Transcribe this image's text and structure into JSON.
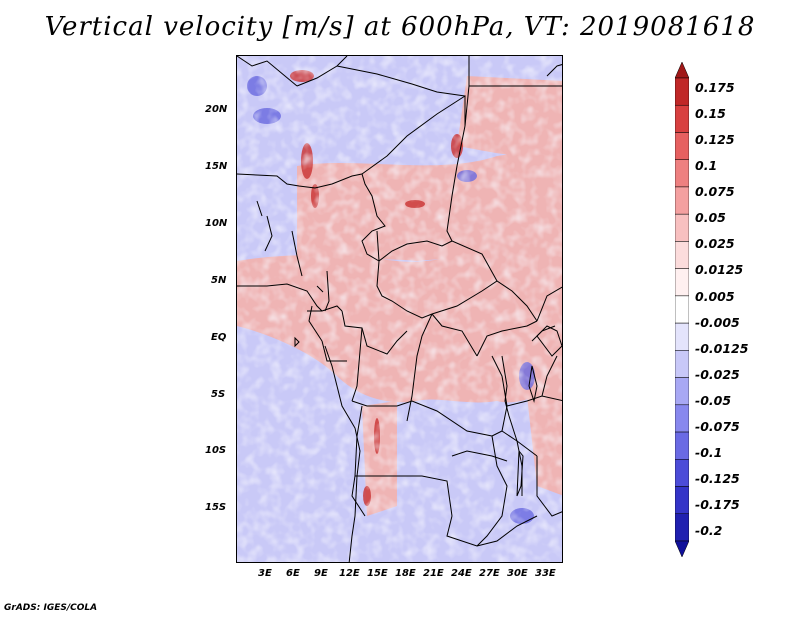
{
  "title": "Vertical velocity [m/s] at 600hPa, VT: 2019081618",
  "footer": "GrADS: IGES/COLA",
  "map": {
    "lon_ticks": [
      "3E",
      "6E",
      "9E",
      "12E",
      "15E",
      "18E",
      "21E",
      "24E",
      "27E",
      "30E",
      "33E"
    ],
    "lat_ticks": [
      "20N",
      "15N",
      "10N",
      "5N",
      "EQ",
      "5S",
      "10S",
      "15S"
    ],
    "colors": {
      "positive": "#e89090",
      "negative": "#9a9af0",
      "border": "#000000"
    }
  },
  "colorbar": {
    "levels": [
      "0.175",
      "0.15",
      "0.125",
      "0.1",
      "0.075",
      "0.05",
      "0.025",
      "0.0125",
      "0.005",
      "-0.005",
      "-0.0125",
      "-0.025",
      "-0.05",
      "-0.075",
      "-0.1",
      "-0.125",
      "-0.175",
      "-0.2"
    ],
    "colors": [
      "#a01818",
      "#c02828",
      "#d84040",
      "#e66060",
      "#ee8080",
      "#f4a0a0",
      "#f8c0c0",
      "#fcdcdc",
      "#fff0f0",
      "#ffffff",
      "#e4e4fc",
      "#c8c8f8",
      "#a8a8f4",
      "#8888ee",
      "#6a6ae4",
      "#4c4cd8",
      "#3434c8",
      "#2020b0",
      "#10109a"
    ]
  }
}
